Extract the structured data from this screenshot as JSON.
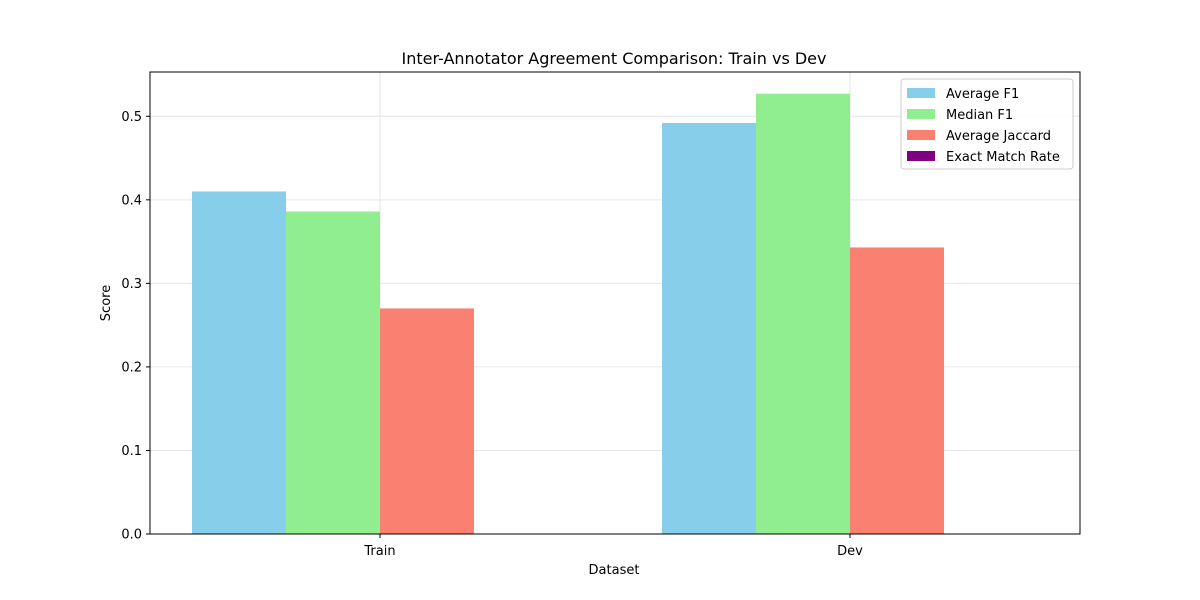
{
  "chart_data": {
    "type": "bar",
    "title": "Inter-Annotator Agreement Comparison: Train vs Dev",
    "xlabel": "Dataset",
    "ylabel": "Score",
    "categories": [
      "Train",
      "Dev"
    ],
    "series": [
      {
        "name": "Average F1",
        "color": "#87CEEB",
        "values": [
          0.41,
          0.492
        ]
      },
      {
        "name": "Median F1",
        "color": "#90EE90",
        "values": [
          0.386,
          0.527
        ]
      },
      {
        "name": "Average Jaccard",
        "color": "#FA8072",
        "values": [
          0.27,
          0.343
        ]
      },
      {
        "name": "Exact Match Rate",
        "color": "#800080",
        "values": [
          0.0,
          0.0
        ]
      }
    ],
    "ylim": [
      0,
      0.553
    ],
    "yticks": [
      "0.0",
      "0.1",
      "0.2",
      "0.3",
      "0.4",
      "0.5"
    ],
    "ytick_values": [
      0.0,
      0.1,
      0.2,
      0.3,
      0.4,
      0.5
    ],
    "grid": true,
    "legend_position": "top-right"
  }
}
